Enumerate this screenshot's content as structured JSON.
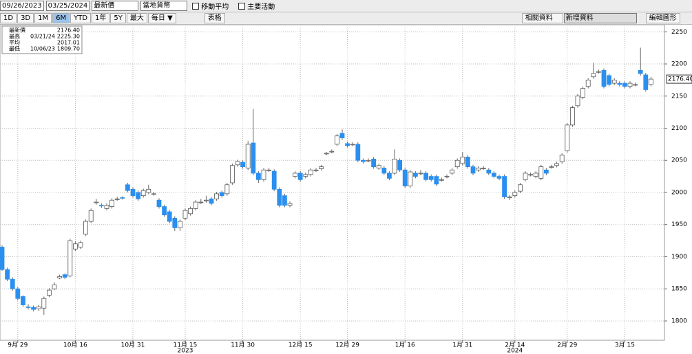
{
  "toolbar": {
    "start_date": "09/26/2023",
    "end_date": "03/25/2024",
    "price_field": "最新價",
    "currency": "當地貨幣",
    "moving_average": "移動平均",
    "key_events": "主要活動",
    "ranges": [
      "1D",
      "3D",
      "1M",
      "6M",
      "YTD",
      "1年",
      "5Y",
      "最大"
    ],
    "active_range": "6M",
    "frequency": "每日 ▼",
    "table": "表格",
    "related": "相關資料",
    "add_data": "新增資料",
    "edit_chart": "編輯圖形"
  },
  "chart_data": {
    "type": "candlestick",
    "up_color": "#ffffff",
    "down_color": "#2b8ff0",
    "grid": true,
    "legend": [
      {
        "name": "最新價",
        "value": "2176.40"
      },
      {
        "name": "最高",
        "date": "03/21/24",
        "value": "2225.30"
      },
      {
        "name": "平均",
        "value": "2017.01"
      },
      {
        "name": "最低",
        "date": "10/06/23",
        "value": "1809.70"
      }
    ],
    "last_label": "2176.40",
    "years": [
      "2023",
      "2024"
    ],
    "ylim": [
      1770,
      2261
    ],
    "yticks": [
      1800,
      1850,
      1900,
      1950,
      2000,
      2050,
      2100,
      2150,
      2200,
      2250
    ],
    "categories": [
      null,
      null,
      null,
      "9月 29",
      null,
      null,
      null,
      null,
      null,
      null,
      null,
      null,
      null,
      null,
      "10月 16",
      null,
      null,
      null,
      null,
      null,
      null,
      null,
      null,
      null,
      null,
      "10月 31",
      null,
      null,
      null,
      null,
      null,
      null,
      null,
      null,
      null,
      "11月 15",
      null,
      null,
      null,
      null,
      null,
      null,
      null,
      null,
      null,
      null,
      "11月 30",
      null,
      null,
      null,
      null,
      null,
      null,
      null,
      null,
      null,
      null,
      "12月 15",
      null,
      null,
      null,
      null,
      null,
      null,
      null,
      null,
      "12月 29",
      null,
      null,
      null,
      null,
      null,
      null,
      null,
      null,
      null,
      null,
      "1月 16",
      null,
      null,
      null,
      null,
      null,
      null,
      null,
      null,
      null,
      null,
      "1月 31",
      null,
      null,
      null,
      null,
      null,
      null,
      null,
      null,
      null,
      "2月 14",
      null,
      null,
      null,
      null,
      null,
      null,
      null,
      null,
      null,
      "2月 29",
      null,
      null,
      null,
      null,
      null,
      null,
      null,
      null,
      null,
      null,
      "3月 15",
      null,
      null,
      null,
      null,
      null
    ],
    "open": [
      1915,
      1880,
      1865,
      1850,
      1838,
      1822,
      1821,
      1819,
      1820,
      1840,
      1850,
      1867,
      1872,
      1870,
      1912,
      1915,
      1935,
      1955,
      1984,
      1980,
      1975,
      1978,
      1990,
      1992,
      2012,
      2005,
      2000,
      1995,
      2000,
      1998,
      1988,
      1978,
      1970,
      1960,
      1945,
      1960,
      1967,
      1975,
      1985,
      1988,
      1990,
      1990,
      2000,
      1998,
      2015,
      2043,
      2047,
      2038,
      2077,
      2030,
      2020,
      2035,
      2033,
      2005,
      1995,
      1980,
      2025,
      2030,
      2025,
      2028,
      2035,
      2037,
      2060,
      2064,
      2075,
      2092,
      2076,
      2075,
      2075,
      2050,
      2050,
      2052,
      2038,
      2038,
      2030,
      2030,
      2050,
      2035,
      2010,
      2030,
      2030,
      2030,
      2025,
      2025,
      2020,
      2025,
      2030,
      2040,
      2045,
      2055,
      2040,
      2035,
      2038,
      2035,
      2030,
      2025,
      2025,
      1993,
      1995,
      2002,
      2020,
      2028,
      2025,
      2022,
      2035,
      2040,
      2042,
      2048,
      2065,
      2105,
      2135,
      2148,
      2165,
      2180,
      2188,
      2190,
      2182,
      2170,
      2170,
      2170,
      2165,
      2168,
      2190,
      2183,
      2168
    ],
    "high": [
      1918,
      1883,
      1868,
      1853,
      1840,
      1826,
      1824,
      1825,
      1838,
      1851,
      1860,
      1872,
      1874,
      1928,
      1924,
      1925,
      1958,
      1975,
      1990,
      1983,
      1983,
      1991,
      1993,
      1994,
      2015,
      2008,
      2003,
      2006,
      2012,
      2001,
      1991,
      1981,
      1973,
      1963,
      1958,
      1975,
      1978,
      1988,
      1990,
      1995,
      1993,
      2001,
      2003,
      2015,
      2045,
      2051,
      2050,
      2080,
      2130,
      2033,
      2038,
      2038,
      2036,
      2008,
      1998,
      1986,
      2033,
      2033,
      2031,
      2038,
      2038,
      2043,
      2063,
      2067,
      2091,
      2098,
      2079,
      2078,
      2078,
      2053,
      2053,
      2055,
      2045,
      2041,
      2033,
      2067,
      2053,
      2038,
      2035,
      2033,
      2035,
      2033,
      2028,
      2028,
      2023,
      2028,
      2038,
      2053,
      2063,
      2058,
      2043,
      2041,
      2041,
      2038,
      2033,
      2028,
      2028,
      1996,
      2003,
      2015,
      2033,
      2031,
      2033,
      2043,
      2038,
      2043,
      2048,
      2061,
      2108,
      2135,
      2153,
      2165,
      2178,
      2202,
      2191,
      2193,
      2185,
      2178,
      2173,
      2173,
      2173,
      2171,
      2225.3,
      2186,
      2180
    ],
    "low": [
      1878,
      1862,
      1847,
      1832,
      1822,
      1818,
      1815,
      1816,
      1809.7,
      1837,
      1848,
      1865,
      1865,
      1868,
      1909,
      1912,
      1932,
      1952,
      1981,
      1976,
      1972,
      1975,
      1987,
      1989,
      2000,
      1992,
      1987,
      1992,
      1997,
      1995,
      1975,
      1962,
      1952,
      1940,
      1940,
      1957,
      1964,
      1972,
      1982,
      1984,
      1980,
      1987,
      1992,
      1995,
      2012,
      2040,
      2037,
      2035,
      2027,
      2015,
      2017,
      2032,
      2002,
      1977,
      1977,
      1977,
      2022,
      2017,
      2022,
      2025,
      2032,
      2034,
      2058,
      2061,
      2072,
      2082,
      2070,
      2072,
      2047,
      2045,
      2047,
      2037,
      2035,
      2027,
      2019,
      2027,
      2032,
      2007,
      2007,
      2022,
      2027,
      2017,
      2017,
      2010,
      2017,
      2022,
      2027,
      2037,
      2042,
      2037,
      2027,
      2032,
      2035,
      2027,
      2022,
      2019,
      1990,
      1988,
      1992,
      1999,
      2017,
      2025,
      2022,
      2019,
      2027,
      2037,
      2039,
      2045,
      2062,
      2102,
      2132,
      2145,
      2162,
      2177,
      2185,
      2162,
      2165,
      2167,
      2165,
      2162,
      2162,
      2165,
      2182,
      2157,
      2165
    ],
    "close": [
      1880,
      1865,
      1850,
      1835,
      1825,
      1821,
      1818,
      1822,
      1835,
      1848,
      1856,
      1869,
      1868,
      1925,
      1920,
      1922,
      1955,
      1972,
      1985,
      1979,
      1980,
      1988,
      1990,
      1991,
      2003,
      1995,
      1990,
      2003,
      2005,
      1998,
      1978,
      1965,
      1955,
      1945,
      1955,
      1972,
      1975,
      1985,
      1985,
      1988,
      1983,
      1998,
      1995,
      2012,
      2042,
      2048,
      2040,
      2075,
      2030,
      2020,
      2035,
      2035,
      2005,
      1980,
      1980,
      1983,
      2030,
      2020,
      2028,
      2035,
      2035,
      2040,
      2061,
      2064,
      2088,
      2085,
      2073,
      2075,
      2050,
      2048,
      2050,
      2040,
      2042,
      2030,
      2022,
      2052,
      2035,
      2010,
      2032,
      2025,
      2030,
      2020,
      2020,
      2013,
      2020,
      2025,
      2035,
      2050,
      2055,
      2040,
      2030,
      2038,
      2038,
      2030,
      2025,
      2022,
      1993,
      1993,
      2000,
      2012,
      2030,
      2028,
      2030,
      2040,
      2030,
      2040,
      2045,
      2058,
      2105,
      2132,
      2150,
      2162,
      2175,
      2185,
      2188,
      2165,
      2168,
      2175,
      2168,
      2165,
      2170,
      2168,
      2185,
      2160,
      2176.4
    ]
  }
}
